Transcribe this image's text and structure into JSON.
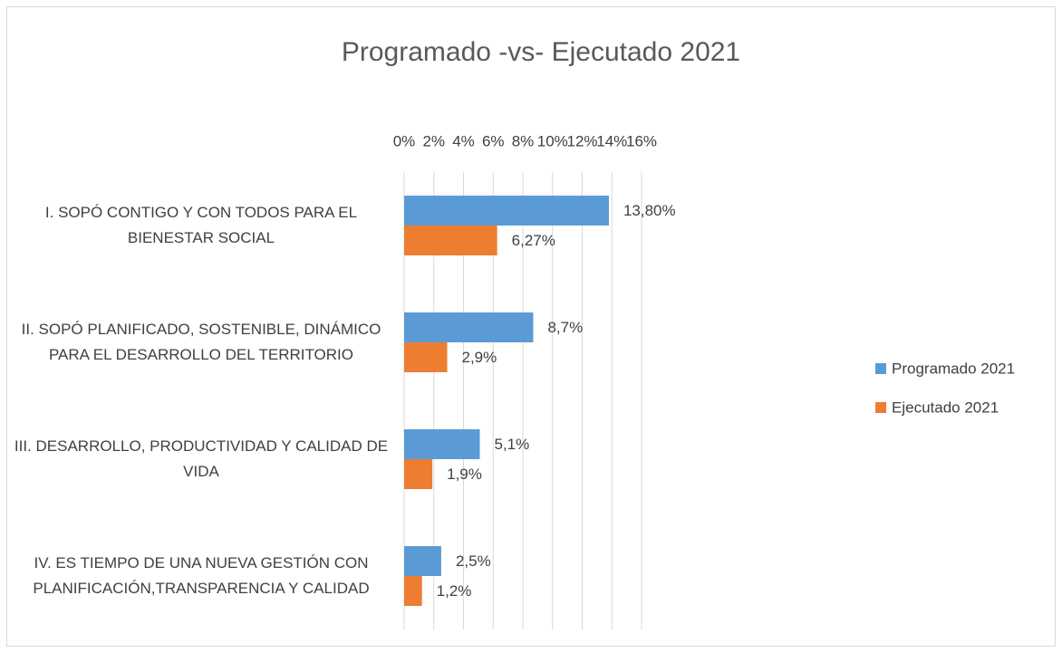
{
  "chart_data": {
    "type": "bar",
    "orientation": "horizontal",
    "title": "Programado -vs- Ejecutado 2021",
    "categories": [
      "I. SOPÓ CONTIGO Y CON TODOS PARA EL BIENESTAR SOCIAL",
      "II. SOPÓ PLANIFICADO, SOSTENIBLE, DINÁMICO PARA EL DESARROLLO DEL TERRITORIO",
      "III. DESARROLLO, PRODUCTIVIDAD Y CALIDAD DE VIDA",
      "IV. ES TIEMPO DE UNA NUEVA GESTIÓN CON PLANIFICACIÓN,TRANSPARENCIA Y CALIDAD"
    ],
    "series": [
      {
        "name": "Programado 2021",
        "color": "#5b9bd5",
        "values": [
          13.8,
          8.7,
          5.1,
          2.5
        ],
        "value_labels": [
          "13,80%",
          "8,7%",
          "5,1%",
          "2,5%"
        ]
      },
      {
        "name": "Ejecutado 2021",
        "color": "#ed7d31",
        "values": [
          6.27,
          2.9,
          1.9,
          1.2
        ],
        "value_labels": [
          "6,27%",
          "2,9%",
          "1,9%",
          "1,2%"
        ]
      }
    ],
    "xlim": [
      0,
      16
    ],
    "xticks": [
      {
        "value": 0,
        "label": "0%"
      },
      {
        "value": 2,
        "label": "2%"
      },
      {
        "value": 4,
        "label": "4%"
      },
      {
        "value": 6,
        "label": "6%"
      },
      {
        "value": 8,
        "label": "8%"
      },
      {
        "value": 10,
        "label": "10%"
      },
      {
        "value": 12,
        "label": "12%"
      },
      {
        "value": 14,
        "label": "14%"
      },
      {
        "value": 16,
        "label": "16%"
      }
    ],
    "grid": true,
    "legend": "right"
  }
}
